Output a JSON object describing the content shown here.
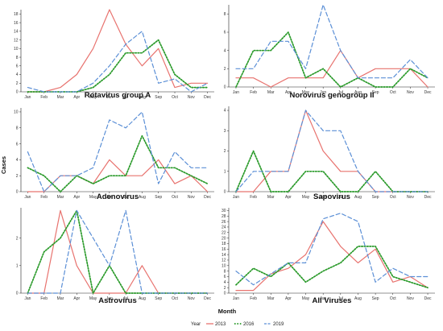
{
  "figure": {
    "xlabel": "Month",
    "ylabel": "Cases",
    "legend_title": "Year",
    "legend_position": "bottom"
  },
  "series_styles": [
    {
      "name": "2013",
      "color": "#e8736f",
      "dash": "solid"
    },
    {
      "name": "2016",
      "color": "#2a9a2a",
      "dash": "dotted"
    },
    {
      "name": "2019",
      "color": "#5b8fd6",
      "dash": "dashed"
    }
  ],
  "chart_data": [
    {
      "type": "line",
      "title": "Rotavirus group A",
      "categories": [
        "Jan",
        "Feb",
        "Mar",
        "Apr",
        "May",
        "Jun",
        "Jul",
        "Aug",
        "Sep",
        "Oct",
        "Nov",
        "Dec"
      ],
      "yticks": [
        0,
        2,
        4,
        6,
        8,
        10,
        12,
        14,
        16,
        18
      ],
      "ylim": [
        0,
        19
      ],
      "series": [
        {
          "name": "2013",
          "values": [
            0,
            0,
            1,
            4,
            10,
            19,
            11,
            6,
            10,
            1,
            2,
            2
          ]
        },
        {
          "name": "2016",
          "values": [
            0,
            0,
            0,
            0,
            1,
            4,
            9,
            9,
            12,
            4,
            1,
            1
          ]
        },
        {
          "name": "2019",
          "values": [
            1,
            0,
            0,
            0,
            2,
            6,
            11,
            14,
            2,
            3,
            0,
            2
          ]
        }
      ]
    },
    {
      "type": "line",
      "title": "Norovirus genogroup II",
      "categories": [
        "Jan",
        "Feb",
        "Mar",
        "Apr",
        "May",
        "Jun",
        "Jul",
        "Aug",
        "Sep",
        "Oct",
        "Nov",
        "Dec"
      ],
      "yticks": [
        0,
        2,
        4,
        6,
        8
      ],
      "ylim": [
        0,
        9
      ],
      "series": [
        {
          "name": "2013",
          "values": [
            1,
            1,
            0,
            1,
            1,
            1,
            4,
            1,
            2,
            2,
            2,
            0
          ]
        },
        {
          "name": "2016",
          "values": [
            0,
            4,
            4,
            6,
            1,
            2,
            0,
            1,
            0,
            0,
            2,
            1
          ]
        },
        {
          "name": "2019",
          "values": [
            2,
            2,
            5,
            5,
            2,
            9,
            4,
            1,
            1,
            1,
            3,
            1
          ]
        }
      ]
    },
    {
      "type": "line",
      "title": "Adenovirus",
      "categories": [
        "Jan",
        "Feb",
        "Mar",
        "Apr",
        "May",
        "Jun",
        "Jul",
        "Aug",
        "Sep",
        "Oct",
        "Nov",
        "Dec"
      ],
      "yticks": [
        0,
        2,
        4,
        6,
        8,
        10
      ],
      "ylim": [
        0,
        10.5
      ],
      "series": [
        {
          "name": "2013",
          "values": [
            0,
            0,
            2,
            2,
            1,
            4,
            2,
            2,
            4,
            1,
            2,
            0
          ]
        },
        {
          "name": "2016",
          "values": [
            3,
            2,
            0,
            2,
            1,
            2,
            2,
            7,
            3,
            3,
            2,
            1
          ]
        },
        {
          "name": "2019",
          "values": [
            5,
            0,
            2,
            2,
            3,
            9,
            8,
            10,
            1,
            5,
            3,
            3
          ]
        }
      ]
    },
    {
      "type": "line",
      "title": "Sapovirus",
      "categories": [
        "Jan",
        "Feb",
        "Mar",
        "Apr",
        "May",
        "Jun",
        "Jul",
        "Aug",
        "Sep",
        "Oct",
        "Nov",
        "Dec"
      ],
      "yticks": [
        0,
        1,
        2,
        3,
        4
      ],
      "ylim": [
        0,
        4.2
      ],
      "series": [
        {
          "name": "2013",
          "values": [
            0,
            0,
            1,
            1,
            4,
            2,
            1,
            1,
            0,
            0,
            0,
            0
          ]
        },
        {
          "name": "2016",
          "values": [
            0,
            2,
            0,
            0,
            1,
            1,
            0,
            0,
            1,
            0,
            0,
            0
          ]
        },
        {
          "name": "2019",
          "values": [
            0,
            1,
            1,
            1,
            4,
            3,
            3,
            1,
            0,
            0,
            0,
            0
          ]
        }
      ]
    },
    {
      "type": "line",
      "title": "Astrovirus",
      "categories": [
        "Jan",
        "Feb",
        "Mar",
        "Apr",
        "May",
        "Jun",
        "Jul",
        "Aug",
        "Sep",
        "Oct",
        "Nov",
        "Dec"
      ],
      "yticks": [
        0,
        1,
        2
      ],
      "ylim": [
        0,
        3.1
      ],
      "series": [
        {
          "name": "2013",
          "values": [
            0,
            0,
            3,
            1,
            0,
            0,
            0,
            1,
            0,
            0,
            0,
            0
          ]
        },
        {
          "name": "2016",
          "values": [
            0,
            1.5,
            2,
            3,
            0,
            1,
            0,
            0,
            0,
            0,
            0,
            0
          ]
        },
        {
          "name": "2019",
          "values": [
            0,
            0,
            0,
            3,
            2,
            1,
            3,
            0,
            0,
            0,
            0,
            0
          ]
        }
      ]
    },
    {
      "type": "line",
      "title": "All Viruses",
      "categories": [
        "Jan",
        "Feb",
        "Mar",
        "Apr",
        "May",
        "Jun",
        "Jul",
        "Aug",
        "Sep",
        "Oct",
        "Nov",
        "Dec"
      ],
      "yticks": [
        0,
        2,
        4,
        6,
        8,
        10,
        12,
        14,
        16,
        18,
        20,
        22,
        24,
        26,
        28,
        30
      ],
      "ylim": [
        0,
        31
      ],
      "series": [
        {
          "name": "2013",
          "values": [
            1,
            1,
            7,
            9,
            14,
            26,
            17,
            11,
            16,
            4,
            6,
            2
          ]
        },
        {
          "name": "2016",
          "values": [
            3,
            9,
            6,
            11,
            4,
            8,
            11,
            17,
            17,
            6,
            4,
            2
          ]
        },
        {
          "name": "2019",
          "values": [
            8,
            3,
            7,
            11,
            11,
            27,
            29,
            26,
            4,
            9,
            6,
            6
          ]
        }
      ]
    }
  ]
}
